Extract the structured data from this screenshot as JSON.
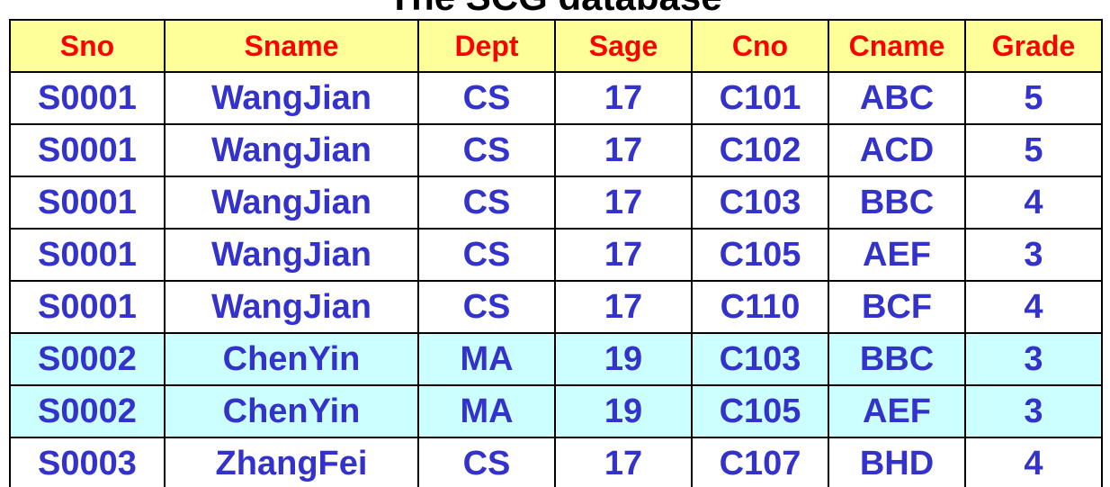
{
  "title": "The SCG database",
  "columns": [
    "Sno",
    "Sname",
    "Dept",
    "Sage",
    "Cno",
    "Cname",
    "Grade"
  ],
  "rows": [
    [
      "S0001",
      "WangJian",
      "CS",
      "17",
      "C101",
      "ABC",
      "5"
    ],
    [
      "S0001",
      "WangJian",
      "CS",
      "17",
      "C102",
      "ACD",
      "5"
    ],
    [
      "S0001",
      "WangJian",
      "CS",
      "17",
      "C103",
      "BBC",
      "4"
    ],
    [
      "S0001",
      "WangJian",
      "CS",
      "17",
      "C105",
      "AEF",
      "3"
    ],
    [
      "S0001",
      "WangJian",
      "CS",
      "17",
      "C110",
      "BCF",
      "4"
    ],
    [
      "S0002",
      "ChenYin",
      "MA",
      "19",
      "C103",
      "BBC",
      "3"
    ],
    [
      "S0002",
      "ChenYin",
      "MA",
      "19",
      "C105",
      "AEF",
      "3"
    ],
    [
      "S0003",
      "ZhangFei",
      "CS",
      "17",
      "C107",
      "BHD",
      "4"
    ]
  ],
  "colors": {
    "header_background": "#ffff99",
    "header_text": "#ff0000",
    "cell_text": "#3333cc",
    "highlight_row_background": "#ccffff",
    "border": "#000000"
  }
}
